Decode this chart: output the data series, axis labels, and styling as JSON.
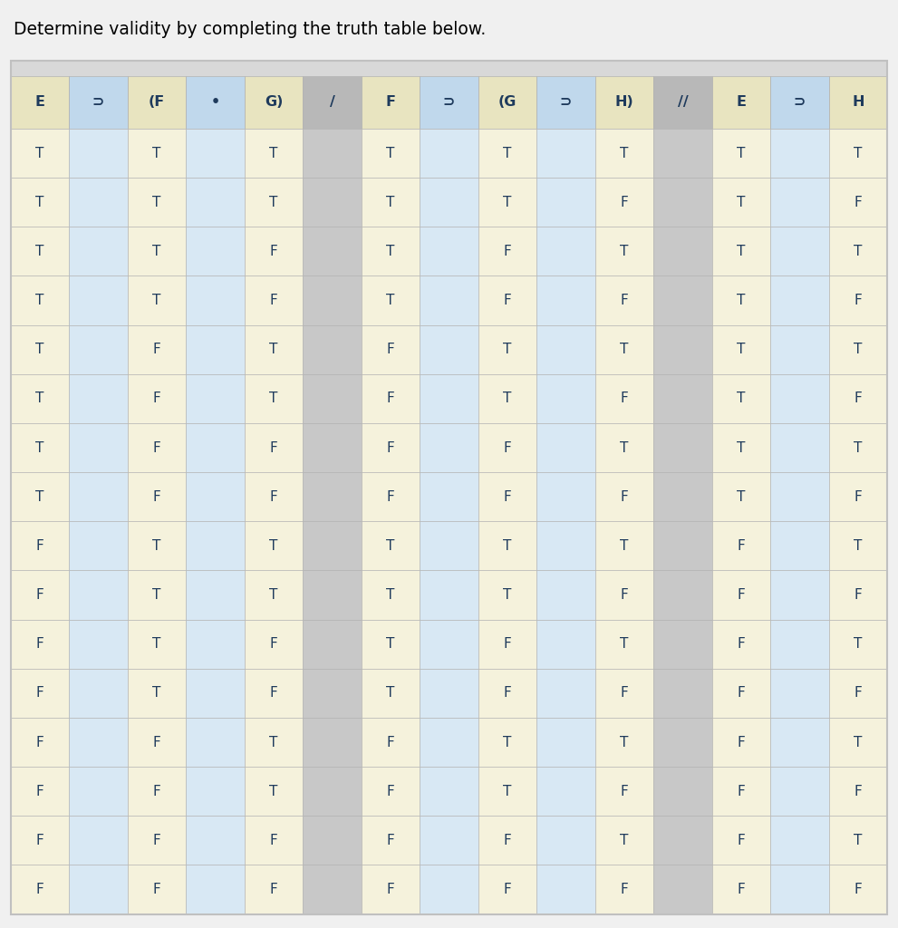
{
  "title": "Determine validity by completing the truth table below.",
  "headers": [
    "E",
    "⊃",
    "(F",
    "•",
    "G)",
    "/",
    "F",
    "⊃",
    "(G",
    "⊃",
    "H)",
    "//",
    "E",
    "⊃",
    "H"
  ],
  "col_count": 15,
  "rows": [
    [
      "T",
      "",
      "T",
      "",
      "T",
      "",
      "T",
      "",
      "T",
      "",
      "T",
      "",
      "T",
      "",
      "T"
    ],
    [
      "T",
      "",
      "T",
      "",
      "T",
      "",
      "T",
      "",
      "T",
      "",
      "F",
      "",
      "T",
      "",
      "F"
    ],
    [
      "T",
      "",
      "T",
      "",
      "F",
      "",
      "T",
      "",
      "F",
      "",
      "T",
      "",
      "T",
      "",
      "T"
    ],
    [
      "T",
      "",
      "T",
      "",
      "F",
      "",
      "T",
      "",
      "F",
      "",
      "F",
      "",
      "T",
      "",
      "F"
    ],
    [
      "T",
      "",
      "F",
      "",
      "T",
      "",
      "F",
      "",
      "T",
      "",
      "T",
      "",
      "T",
      "",
      "T"
    ],
    [
      "T",
      "",
      "F",
      "",
      "T",
      "",
      "F",
      "",
      "T",
      "",
      "F",
      "",
      "T",
      "",
      "F"
    ],
    [
      "T",
      "",
      "F",
      "",
      "F",
      "",
      "F",
      "",
      "F",
      "",
      "T",
      "",
      "T",
      "",
      "T"
    ],
    [
      "T",
      "",
      "F",
      "",
      "F",
      "",
      "F",
      "",
      "F",
      "",
      "F",
      "",
      "T",
      "",
      "F"
    ],
    [
      "F",
      "",
      "T",
      "",
      "T",
      "",
      "T",
      "",
      "T",
      "",
      "T",
      "",
      "F",
      "",
      "T"
    ],
    [
      "F",
      "",
      "T",
      "",
      "T",
      "",
      "T",
      "",
      "T",
      "",
      "F",
      "",
      "F",
      "",
      "F"
    ],
    [
      "F",
      "",
      "T",
      "",
      "F",
      "",
      "T",
      "",
      "F",
      "",
      "T",
      "",
      "F",
      "",
      "T"
    ],
    [
      "F",
      "",
      "T",
      "",
      "F",
      "",
      "T",
      "",
      "F",
      "",
      "F",
      "",
      "F",
      "",
      "F"
    ],
    [
      "F",
      "",
      "F",
      "",
      "T",
      "",
      "F",
      "",
      "T",
      "",
      "T",
      "",
      "F",
      "",
      "T"
    ],
    [
      "F",
      "",
      "F",
      "",
      "T",
      "",
      "F",
      "",
      "T",
      "",
      "F",
      "",
      "F",
      "",
      "F"
    ],
    [
      "F",
      "",
      "F",
      "",
      "F",
      "",
      "F",
      "",
      "F",
      "",
      "T",
      "",
      "F",
      "",
      "T"
    ],
    [
      "F",
      "",
      "F",
      "",
      "F",
      "",
      "F",
      "",
      "F",
      "",
      "F",
      "",
      "F",
      "",
      "F"
    ]
  ],
  "bg_color": "#f0f0f0",
  "title_color": "#000000",
  "header_text_color": "#1e3a5c",
  "cell_text_color": "#1e3a5c",
  "cell_yellow": "#f5f2dc",
  "cell_blue": "#d8e8f4",
  "cell_gray": "#c8c8c8",
  "header_yellow": "#e8e4c0",
  "header_blue": "#c0d8ec",
  "header_gray": "#b8b8b8",
  "border_color": "#b0b0b0",
  "outer_border": "#c0c0c0",
  "thin_bar_color": "#d8d8d8",
  "yellow_cols": [
    0,
    2,
    4,
    6,
    8,
    10,
    12,
    14
  ],
  "blue_cols": [
    1,
    3,
    7,
    9,
    13
  ],
  "gray_cols": [
    5,
    11
  ]
}
